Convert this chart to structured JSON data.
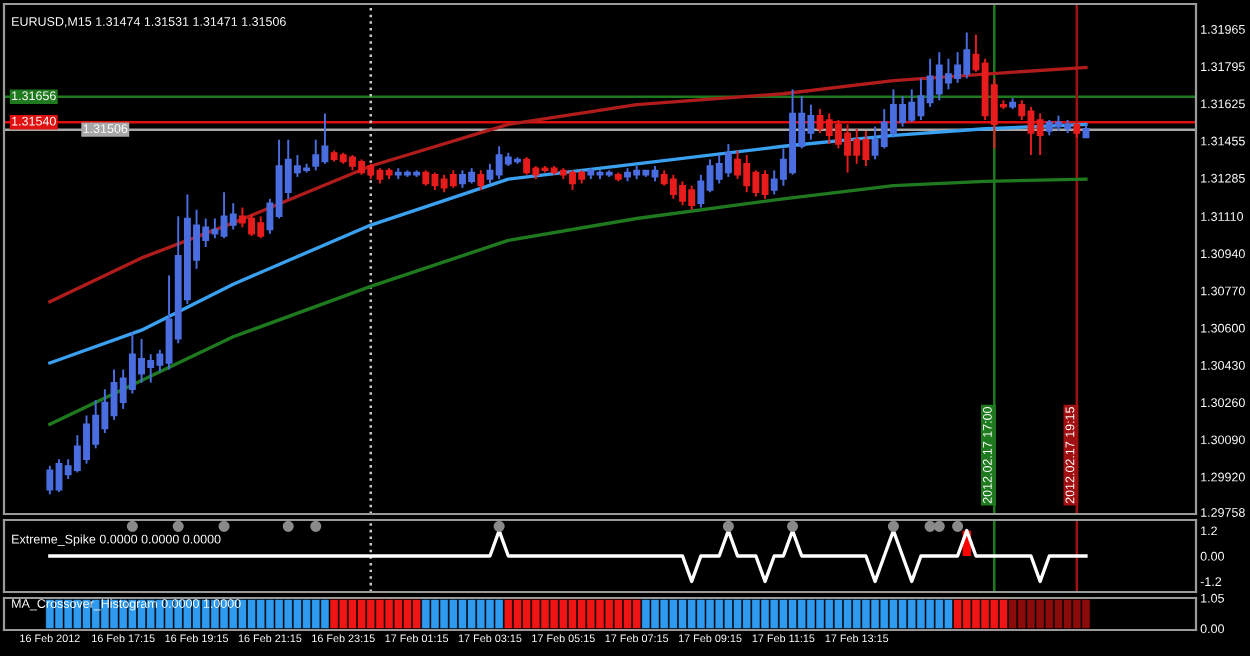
{
  "chart_data": [
    {
      "type": "candlestick",
      "title": "EURUSD,M15 1.31474 1.31531 1.31471 1.31506",
      "x": [
        "2012-02-16T15:15",
        "2012-02-16T15:30",
        "2012-02-16T15:45",
        "2012-02-16T16:00",
        "2012-02-16T16:15",
        "2012-02-16T16:30",
        "2012-02-16T16:45",
        "2012-02-16T17:00",
        "2012-02-16T17:15",
        "2012-02-16T17:30",
        "2012-02-16T17:45",
        "2012-02-16T18:00",
        "2012-02-16T18:15",
        "2012-02-16T18:30",
        "2012-02-16T18:45",
        "2012-02-16T19:00",
        "2012-02-16T19:15",
        "2012-02-16T19:30",
        "2012-02-16T19:45",
        "2012-02-16T20:00",
        "2012-02-16T20:15",
        "2012-02-16T20:30",
        "2012-02-16T20:45",
        "2012-02-16T21:00",
        "2012-02-16T21:15",
        "2012-02-16T21:30",
        "2012-02-16T21:45",
        "2012-02-16T22:00",
        "2012-02-16T22:15",
        "2012-02-16T22:30",
        "2012-02-16T22:45",
        "2012-02-16T23:00",
        "2012-02-16T23:15",
        "2012-02-16T23:30",
        "2012-02-16T23:45",
        "2012-02-17T00:00",
        "2012-02-17T00:15",
        "2012-02-17T00:30",
        "2012-02-17T00:45",
        "2012-02-17T01:00",
        "2012-02-17T01:15",
        "2012-02-17T01:30",
        "2012-02-17T01:45",
        "2012-02-17T02:00",
        "2012-02-17T02:15",
        "2012-02-17T02:30",
        "2012-02-17T02:45",
        "2012-02-17T03:00",
        "2012-02-17T03:15",
        "2012-02-17T03:30",
        "2012-02-17T03:45",
        "2012-02-17T04:00",
        "2012-02-17T04:15",
        "2012-02-17T04:30",
        "2012-02-17T04:45",
        "2012-02-17T05:00",
        "2012-02-17T05:15",
        "2012-02-17T05:30",
        "2012-02-17T05:45",
        "2012-02-17T06:00",
        "2012-02-17T06:15",
        "2012-02-17T06:30",
        "2012-02-17T06:45",
        "2012-02-17T07:00",
        "2012-02-17T07:15",
        "2012-02-17T07:30",
        "2012-02-17T07:45",
        "2012-02-17T08:00",
        "2012-02-17T08:15",
        "2012-02-17T08:30",
        "2012-02-17T08:45",
        "2012-02-17T09:00",
        "2012-02-17T09:15",
        "2012-02-17T09:30",
        "2012-02-17T09:45",
        "2012-02-17T10:00",
        "2012-02-17T10:15",
        "2012-02-17T10:30",
        "2012-02-17T10:45",
        "2012-02-17T11:00",
        "2012-02-17T11:15",
        "2012-02-17T11:30",
        "2012-02-17T11:45",
        "2012-02-17T12:00",
        "2012-02-17T12:15",
        "2012-02-17T12:30",
        "2012-02-17T12:45",
        "2012-02-17T13:00",
        "2012-02-17T13:15",
        "2012-02-17T13:30",
        "2012-02-17T13:45",
        "2012-02-17T14:00",
        "2012-02-17T14:15",
        "2012-02-17T14:30",
        "2012-02-17T14:45",
        "2012-02-17T15:00",
        "2012-02-17T15:15",
        "2012-02-17T15:30",
        "2012-02-17T15:45",
        "2012-02-17T16:00",
        "2012-02-17T16:15",
        "2012-02-17T16:30",
        "2012-02-17T16:45",
        "2012-02-17T17:00",
        "2012-02-17T17:15",
        "2012-02-17T17:30",
        "2012-02-17T17:45",
        "2012-02-17T18:00",
        "2012-02-17T18:15",
        "2012-02-17T18:30",
        "2012-02-17T18:45",
        "2012-02-17T19:00",
        "2012-02-17T19:15",
        "2012-02-17T19:30"
      ],
      "ohlc": [
        [
          1.2986,
          1.2997,
          1.2984,
          1.2995
        ],
        [
          1.2986,
          1.3,
          1.2985,
          1.2998
        ],
        [
          1.2993,
          1.3,
          1.2991,
          1.2997
        ],
        [
          1.2995,
          1.3011,
          1.2994,
          1.3006
        ],
        [
          1.3,
          1.302,
          1.2998,
          1.3016
        ],
        [
          1.3007,
          1.3027,
          1.3005,
          1.302
        ],
        [
          1.3014,
          1.3032,
          1.3012,
          1.3026
        ],
        [
          1.302,
          1.3041,
          1.3018,
          1.3035
        ],
        [
          1.3026,
          1.3041,
          1.3023,
          1.3037
        ],
        [
          1.3032,
          1.3058,
          1.303,
          1.3048
        ],
        [
          1.3039,
          1.3055,
          1.3035,
          1.3046
        ],
        [
          1.3042,
          1.3048,
          1.3035,
          1.3045
        ],
        [
          1.3043,
          1.305,
          1.304,
          1.3048
        ],
        [
          1.3044,
          1.3084,
          1.3041,
          1.3064
        ],
        [
          1.3055,
          1.3111,
          1.3053,
          1.3093
        ],
        [
          1.3073,
          1.3121,
          1.3071,
          1.311
        ],
        [
          1.3091,
          1.3114,
          1.3087,
          1.3107
        ],
        [
          1.31,
          1.311,
          1.3097,
          1.3106
        ],
        [
          1.3103,
          1.311,
          1.3101,
          1.3105
        ],
        [
          1.3102,
          1.3122,
          1.3101,
          1.3111
        ],
        [
          1.3107,
          1.3117,
          1.3105,
          1.3112
        ],
        [
          1.3111,
          1.3115,
          1.3106,
          1.3108
        ],
        [
          1.311,
          1.3112,
          1.3102,
          1.3103
        ],
        [
          1.3108,
          1.3111,
          1.3101,
          1.3102
        ],
        [
          1.3105,
          1.3119,
          1.3103,
          1.3117
        ],
        [
          1.3111,
          1.3146,
          1.311,
          1.3134
        ],
        [
          1.3122,
          1.3146,
          1.3119,
          1.3137
        ],
        [
          1.3131,
          1.3139,
          1.3129,
          1.3134
        ],
        [
          1.3132,
          1.3135,
          1.3131,
          1.3133
        ],
        [
          1.3134,
          1.3146,
          1.3132,
          1.3139
        ],
        [
          1.3136,
          1.3158,
          1.3135,
          1.3143
        ],
        [
          1.314,
          1.3141,
          1.3136,
          1.3137
        ],
        [
          1.3139,
          1.314,
          1.3135,
          1.3136
        ],
        [
          1.3138,
          1.3139,
          1.3132,
          1.3134
        ],
        [
          1.3136,
          1.3137,
          1.313,
          1.3131
        ],
        [
          1.3134,
          1.3135,
          1.3128,
          1.313
        ],
        [
          1.3132,
          1.3133,
          1.3126,
          1.3128
        ],
        [
          1.3132,
          1.3133,
          1.3128,
          1.313
        ],
        [
          1.313,
          1.3133,
          1.3128,
          1.3131
        ],
        [
          1.313,
          1.3132,
          1.3129,
          1.3131
        ],
        [
          1.313,
          1.3132,
          1.3129,
          1.3131
        ],
        [
          1.3131,
          1.3132,
          1.3125,
          1.3126
        ],
        [
          1.313,
          1.3131,
          1.3123,
          1.3125
        ],
        [
          1.3128,
          1.313,
          1.3122,
          1.3124
        ],
        [
          1.313,
          1.3132,
          1.3124,
          1.3125
        ],
        [
          1.3126,
          1.3132,
          1.3124,
          1.313
        ],
        [
          1.3127,
          1.3133,
          1.3126,
          1.3131
        ],
        [
          1.313,
          1.3132,
          1.3123,
          1.3125
        ],
        [
          1.3128,
          1.3135,
          1.3126,
          1.3132
        ],
        [
          1.313,
          1.3143,
          1.3128,
          1.3139
        ],
        [
          1.3135,
          1.314,
          1.3134,
          1.3138
        ],
        [
          1.3136,
          1.3138,
          1.3135,
          1.3137
        ],
        [
          1.3137,
          1.3138,
          1.313,
          1.3131
        ],
        [
          1.3133,
          1.3134,
          1.3128,
          1.313
        ],
        [
          1.3133,
          1.3134,
          1.3131,
          1.3132
        ],
        [
          1.3133,
          1.3134,
          1.313,
          1.3131
        ],
        [
          1.3132,
          1.3133,
          1.3128,
          1.313
        ],
        [
          1.3131,
          1.3132,
          1.3123,
          1.3126
        ],
        [
          1.3131,
          1.3132,
          1.3126,
          1.3128
        ],
        [
          1.313,
          1.3133,
          1.3128,
          1.3132
        ],
        [
          1.313,
          1.3132,
          1.3128,
          1.3131
        ],
        [
          1.313,
          1.3132,
          1.3129,
          1.3131
        ],
        [
          1.313,
          1.3131,
          1.3127,
          1.3128
        ],
        [
          1.3129,
          1.3133,
          1.3127,
          1.3131
        ],
        [
          1.313,
          1.3134,
          1.3128,
          1.3132
        ],
        [
          1.313,
          1.3132,
          1.3129,
          1.3132
        ],
        [
          1.3129,
          1.3134,
          1.3127,
          1.3132
        ],
        [
          1.313,
          1.3132,
          1.3125,
          1.3126
        ],
        [
          1.3128,
          1.313,
          1.3119,
          1.3121
        ],
        [
          1.3125,
          1.3127,
          1.3116,
          1.3118
        ],
        [
          1.3123,
          1.3125,
          1.3114,
          1.3116
        ],
        [
          1.3117,
          1.313,
          1.3115,
          1.3127
        ],
        [
          1.3123,
          1.3137,
          1.3122,
          1.3134
        ],
        [
          1.3128,
          1.3139,
          1.3126,
          1.3135
        ],
        [
          1.3131,
          1.3144,
          1.3129,
          1.314
        ],
        [
          1.3137,
          1.3141,
          1.3128,
          1.313
        ],
        [
          1.3135,
          1.3139,
          1.3122,
          1.3125
        ],
        [
          1.3131,
          1.3132,
          1.312,
          1.3122
        ],
        [
          1.313,
          1.3132,
          1.3119,
          1.3121
        ],
        [
          1.3123,
          1.3132,
          1.3121,
          1.3128
        ],
        [
          1.3128,
          1.3142,
          1.3125,
          1.3137
        ],
        [
          1.3131,
          1.3169,
          1.313,
          1.3158
        ],
        [
          1.3143,
          1.3166,
          1.3142,
          1.3158
        ],
        [
          1.3149,
          1.3162,
          1.3146,
          1.3157
        ],
        [
          1.3157,
          1.316,
          1.3149,
          1.3151
        ],
        [
          1.3155,
          1.3158,
          1.3144,
          1.3148
        ],
        [
          1.3153,
          1.3155,
          1.3142,
          1.3144
        ],
        [
          1.3149,
          1.3153,
          1.3131,
          1.3139
        ],
        [
          1.3146,
          1.3151,
          1.3135,
          1.3139
        ],
        [
          1.3146,
          1.315,
          1.3134,
          1.3137
        ],
        [
          1.3139,
          1.3152,
          1.3137,
          1.3146
        ],
        [
          1.3143,
          1.316,
          1.3142,
          1.3154
        ],
        [
          1.3149,
          1.3169,
          1.3147,
          1.3162
        ],
        [
          1.3154,
          1.3166,
          1.3152,
          1.3162
        ],
        [
          1.3155,
          1.3169,
          1.3154,
          1.3163
        ],
        [
          1.3157,
          1.3174,
          1.3155,
          1.3166
        ],
        [
          1.3163,
          1.3183,
          1.3161,
          1.3175
        ],
        [
          1.3167,
          1.3186,
          1.3164,
          1.318
        ],
        [
          1.3172,
          1.3183,
          1.3169,
          1.3176
        ],
        [
          1.3174,
          1.3186,
          1.3172,
          1.318
        ],
        [
          1.3176,
          1.3195,
          1.3174,
          1.3187
        ],
        [
          1.3185,
          1.3194,
          1.3177,
          1.3178
        ],
        [
          1.3181,
          1.3183,
          1.3155,
          1.3157
        ],
        [
          1.3171,
          1.3174,
          1.3142,
          1.3153
        ],
        [
          1.3162,
          1.3164,
          1.316,
          1.3161
        ],
        [
          1.3161,
          1.3165,
          1.316,
          1.3163
        ],
        [
          1.3162,
          1.3164,
          1.3155,
          1.3157
        ],
        [
          1.3159,
          1.3161,
          1.3139,
          1.3149
        ],
        [
          1.3155,
          1.3158,
          1.3139,
          1.3148
        ],
        [
          1.315,
          1.3155,
          1.3148,
          1.3154
        ],
        [
          1.3152,
          1.3157,
          1.315,
          1.3154
        ],
        [
          1.3151,
          1.3155,
          1.3149,
          1.3153
        ],
        [
          1.3153,
          1.3154,
          1.3147,
          1.3149
        ],
        [
          1.3147,
          1.3153,
          1.3147,
          1.3151
        ]
      ],
      "colors": [
        "#4a6ee0",
        "#4a6ee0",
        "#4a6ee0",
        "#4a6ee0",
        "#4a6ee0",
        "#4a6ee0",
        "#4a6ee0",
        "#4a6ee0",
        "#4a6ee0",
        "#4a6ee0",
        "#4a6ee0",
        "#4a6ee0",
        "#4a6ee0",
        "#4a6ee0",
        "#4a6ee0",
        "#4a6ee0",
        "#4a6ee0",
        "#4a6ee0",
        "#4a6ee0",
        "#4a6ee0",
        "#4a6ee0",
        "#e81c1c",
        "#e81c1c",
        "#e81c1c",
        "#4a6ee0",
        "#4a6ee0",
        "#4a6ee0",
        "#4a6ee0",
        "#4a6ee0",
        "#4a6ee0",
        "#4a6ee0",
        "#e81c1c",
        "#e81c1c",
        "#e81c1c",
        "#e81c1c",
        "#e81c1c",
        "#e81c1c",
        "#e81c1c",
        "#4a6ee0",
        "#4a6ee0",
        "#4a6ee0",
        "#e81c1c",
        "#e81c1c",
        "#e81c1c",
        "#e81c1c",
        "#4a6ee0",
        "#4a6ee0",
        "#e81c1c",
        "#4a6ee0",
        "#4a6ee0",
        "#4a6ee0",
        "#4a6ee0",
        "#e81c1c",
        "#e81c1c",
        "#e81c1c",
        "#e81c1c",
        "#e81c1c",
        "#e81c1c",
        "#e81c1c",
        "#4a6ee0",
        "#4a6ee0",
        "#4a6ee0",
        "#e81c1c",
        "#4a6ee0",
        "#4a6ee0",
        "#4a6ee0",
        "#4a6ee0",
        "#e81c1c",
        "#e81c1c",
        "#e81c1c",
        "#e81c1c",
        "#4a6ee0",
        "#4a6ee0",
        "#4a6ee0",
        "#4a6ee0",
        "#e81c1c",
        "#e81c1c",
        "#e81c1c",
        "#e81c1c",
        "#4a6ee0",
        "#4a6ee0",
        "#4a6ee0",
        "#4a6ee0",
        "#4a6ee0",
        "#e81c1c",
        "#e81c1c",
        "#e81c1c",
        "#e81c1c",
        "#e81c1c",
        "#e81c1c",
        "#4a6ee0",
        "#4a6ee0",
        "#4a6ee0",
        "#4a6ee0",
        "#4a6ee0",
        "#4a6ee0",
        "#4a6ee0",
        "#4a6ee0",
        "#4a6ee0",
        "#4a6ee0",
        "#4a6ee0",
        "#e81c1c",
        "#e81c1c",
        "#e81c1c",
        "#e81c1c",
        "#4a6ee0",
        "#e81c1c",
        "#e81c1c",
        "#e81c1c",
        "#4a6ee0",
        "#4a6ee0",
        "#4a6ee0",
        "#e81c1c",
        "#4a6ee0"
      ],
      "series": [
        {
          "type": "line",
          "color": "#b01c1c",
          "x": [
            "2012-02-16T15:15",
            "2012-02-16T17:45",
            "2012-02-16T20:15",
            "2012-02-17T00:00",
            "2012-02-17T03:45",
            "2012-02-17T07:15",
            "2012-02-17T11:15",
            "2012-02-17T14:15",
            "2012-02-17T16:45",
            "2012-02-17T19:30"
          ],
          "values": [
            1.3072,
            1.3092,
            1.3108,
            1.3134,
            1.3153,
            1.3162,
            1.3167,
            1.3173,
            1.3176,
            1.3179
          ]
        },
        {
          "type": "line",
          "color": "#3aa0f0",
          "x": [
            "2012-02-16T15:15",
            "2012-02-16T17:45",
            "2012-02-16T20:15",
            "2012-02-17T00:00",
            "2012-02-17T03:45",
            "2012-02-17T07:15",
            "2012-02-17T11:15",
            "2012-02-17T14:15",
            "2012-02-17T16:45",
            "2012-02-17T19:30"
          ],
          "values": [
            1.3044,
            1.3059,
            1.308,
            1.3107,
            1.3128,
            1.3135,
            1.3143,
            1.3148,
            1.3151,
            1.3153
          ]
        },
        {
          "type": "line",
          "color": "#1f7a1f",
          "x": [
            "2012-02-16T15:15",
            "2012-02-16T17:45",
            "2012-02-16T20:15",
            "2012-02-17T00:00",
            "2012-02-17T03:45",
            "2012-02-17T07:15",
            "2012-02-17T11:15",
            "2012-02-17T14:15",
            "2012-02-17T16:45",
            "2012-02-17T19:30"
          ],
          "values": [
            1.3016,
            1.3036,
            1.3056,
            1.3079,
            1.31,
            1.311,
            1.3119,
            1.3125,
            1.3127,
            1.3128
          ]
        }
      ],
      "ref_lines": [
        {
          "axis": "y",
          "value": 1.31656,
          "label": "1.31656",
          "color": "#1f7a1f"
        },
        {
          "axis": "y",
          "value": 1.3154,
          "label": "1.31540",
          "color": "#e01010"
        },
        {
          "axis": "y",
          "value": 1.31506,
          "label": "1.31506",
          "color": "#a8a8a8"
        },
        {
          "axis": "x",
          "value": "2012-02-17T00:00",
          "color": "#c8c8c8",
          "line_style": "dotted"
        },
        {
          "axis": "x",
          "value": "2012-02-17T17:00",
          "label": "2012.02.17 17:00",
          "color": "#1f7a1f"
        },
        {
          "axis": "x",
          "value": "2012-02-17T19:15",
          "label": "2012.02.17 19:15",
          "color": "#a01010"
        }
      ],
      "ylim": [
        1.2975,
        1.3208
      ],
      "yticks": [
        1.31965,
        1.31795,
        1.31625,
        1.31455,
        1.31285,
        {
          "value": 1.3111,
          "label": "1.31110"
        },
        {
          "value": 1.3094,
          "label": "1.30940"
        },
        {
          "value": 1.3077,
          "label": "1.30770"
        },
        {
          "value": 1.306,
          "label": "1.30600"
        },
        {
          "value": 1.3043,
          "label": "1.30430"
        },
        {
          "value": 1.3026,
          "label": "1.30260"
        },
        {
          "value": 1.3009,
          "label": "1.30090"
        },
        {
          "value": 1.2992,
          "label": "1.29920"
        },
        1.29758
      ],
      "tick_labels": "y",
      "xlim": [
        "2012-02-16T14:00",
        "2012-02-17T22:30"
      ]
    },
    {
      "type": "line",
      "title": "Extreme_Spike 0.0000 0.0000 0.0000",
      "x": [
        "2012-02-16T15:15",
        "2012-02-16T15:30",
        "2012-02-16T15:45",
        "2012-02-16T16:00",
        "2012-02-16T16:15",
        "2012-02-16T16:30",
        "2012-02-16T16:45",
        "2012-02-16T17:00",
        "2012-02-16T17:15",
        "2012-02-16T17:30",
        "2012-02-16T17:45",
        "2012-02-16T18:00",
        "2012-02-16T18:15",
        "2012-02-16T18:30",
        "2012-02-16T18:45",
        "2012-02-16T19:00",
        "2012-02-16T19:15",
        "2012-02-16T19:30",
        "2012-02-16T19:45",
        "2012-02-16T20:00",
        "2012-02-16T20:15",
        "2012-02-16T20:30",
        "2012-02-16T20:45",
        "2012-02-16T21:00",
        "2012-02-16T21:15",
        "2012-02-16T21:30",
        "2012-02-16T21:45",
        "2012-02-16T22:00",
        "2012-02-16T22:15",
        "2012-02-16T22:30",
        "2012-02-16T22:45",
        "2012-02-16T23:00",
        "2012-02-16T23:15",
        "2012-02-16T23:30",
        "2012-02-16T23:45",
        "2012-02-17T00:00",
        "2012-02-17T00:15",
        "2012-02-17T00:30",
        "2012-02-17T00:45",
        "2012-02-17T01:00",
        "2012-02-17T01:15",
        "2012-02-17T01:30",
        "2012-02-17T01:45",
        "2012-02-17T02:00",
        "2012-02-17T02:15",
        "2012-02-17T02:30",
        "2012-02-17T02:45",
        "2012-02-17T03:00",
        "2012-02-17T03:15",
        "2012-02-17T03:30",
        "2012-02-17T03:45",
        "2012-02-17T04:00",
        "2012-02-17T04:15",
        "2012-02-17T04:30",
        "2012-02-17T04:45",
        "2012-02-17T05:00",
        "2012-02-17T05:15",
        "2012-02-17T05:30",
        "2012-02-17T05:45",
        "2012-02-17T06:00",
        "2012-02-17T06:15",
        "2012-02-17T06:30",
        "2012-02-17T06:45",
        "2012-02-17T07:00",
        "2012-02-17T07:15",
        "2012-02-17T07:30",
        "2012-02-17T07:45",
        "2012-02-17T08:00",
        "2012-02-17T08:15",
        "2012-02-17T08:30",
        "2012-02-17T08:45",
        "2012-02-17T09:00",
        "2012-02-17T09:15",
        "2012-02-17T09:30",
        "2012-02-17T09:45",
        "2012-02-17T10:00",
        "2012-02-17T10:15",
        "2012-02-17T10:30",
        "2012-02-17T10:45",
        "2012-02-17T11:00",
        "2012-02-17T11:15",
        "2012-02-17T11:30",
        "2012-02-17T11:45",
        "2012-02-17T12:00",
        "2012-02-17T12:15",
        "2012-02-17T12:30",
        "2012-02-17T12:45",
        "2012-02-17T13:00",
        "2012-02-17T13:15",
        "2012-02-17T13:30",
        "2012-02-17T13:45",
        "2012-02-17T14:00",
        "2012-02-17T14:15",
        "2012-02-17T14:30",
        "2012-02-17T14:45",
        "2012-02-17T15:00",
        "2012-02-17T15:15",
        "2012-02-17T15:30",
        "2012-02-17T15:45",
        "2012-02-17T16:00",
        "2012-02-17T16:15",
        "2012-02-17T16:30",
        "2012-02-17T16:45",
        "2012-02-17T17:00",
        "2012-02-17T17:15",
        "2012-02-17T17:30",
        "2012-02-17T17:45",
        "2012-02-17T18:00",
        "2012-02-17T18:15",
        "2012-02-17T18:30",
        "2012-02-17T18:45",
        "2012-02-17T19:00",
        "2012-02-17T19:15",
        "2012-02-17T19:30"
      ],
      "series": [
        {
          "color": "#ffffff",
          "values": [
            0,
            0,
            0,
            0,
            0,
            0,
            0,
            0,
            0,
            0,
            0,
            0,
            0,
            0,
            0,
            0,
            0,
            0,
            0,
            0,
            0,
            0,
            0,
            0,
            0,
            0,
            0,
            0,
            0,
            0,
            0,
            0,
            0,
            0,
            0,
            0,
            0,
            0,
            0,
            0,
            0,
            0,
            0,
            0,
            0,
            0,
            0,
            0,
            0,
            1.2,
            0,
            0,
            0,
            0,
            0,
            0,
            0,
            0,
            0,
            0,
            0,
            0,
            0,
            0,
            0,
            0,
            0,
            0,
            0,
            0,
            -1.2,
            0,
            0,
            0,
            1.2,
            0,
            0,
            0,
            -1.2,
            0,
            0,
            1.2,
            0,
            0,
            0,
            0,
            0,
            0,
            0,
            0,
            -1.2,
            0,
            1.2,
            0,
            -1.2,
            0,
            0,
            0,
            0,
            0,
            1.2,
            0,
            0,
            0,
            0,
            0,
            0,
            0,
            -1.2,
            0,
            0,
            0,
            0,
            0
          ]
        },
        {
          "type": "bar",
          "color": "#ff0000",
          "x": [
            "2012-02-17T16:15"
          ],
          "values": [
            1.2
          ]
        },
        {
          "type": "scatter",
          "color": "#8a8a8a",
          "marker": "circle",
          "x": [
            "2012-02-16T17:30",
            "2012-02-16T18:45",
            "2012-02-16T20:00",
            "2012-02-16T21:45",
            "2012-02-16T22:30",
            "2012-02-17T03:30",
            "2012-02-17T09:45",
            "2012-02-17T11:30",
            "2012-02-17T14:15",
            "2012-02-17T15:15",
            "2012-02-17T15:30",
            "2012-02-17T16:00"
          ],
          "values": [
            1.4,
            1.4,
            1.4,
            1.4,
            1.4,
            1.4,
            1.4,
            1.4,
            1.4,
            1.4,
            1.4,
            1.4
          ]
        }
      ],
      "ref_lines": [
        {
          "axis": "x",
          "value": "2012-02-17T00:00",
          "color": "#c8c8c8",
          "line_style": "dotted"
        },
        {
          "axis": "x",
          "value": "2012-02-17T17:00",
          "color": "#1f7a1f"
        },
        {
          "axis": "x",
          "value": "2012-02-17T19:15",
          "color": "#a01010"
        }
      ],
      "xlim": [
        "2012-02-16T14:00",
        "2012-02-17T22:30"
      ],
      "ylim": [
        -1.7,
        1.7
      ],
      "yticks": [
        1.2,
        {
          "value": 0,
          "label": "0.00"
        },
        -1.2
      ],
      "tick_labels": "y"
    },
    {
      "type": "bar",
      "title": "MA_Crossover_Histogram 0.0000 1.0000",
      "x": [
        "2012-02-16T15:15",
        "2012-02-16T15:30",
        "2012-02-16T15:45",
        "2012-02-16T16:00",
        "2012-02-16T16:15",
        "2012-02-16T16:30",
        "2012-02-16T16:45",
        "2012-02-16T17:00",
        "2012-02-16T17:15",
        "2012-02-16T17:30",
        "2012-02-16T17:45",
        "2012-02-16T18:00",
        "2012-02-16T18:15",
        "2012-02-16T18:30",
        "2012-02-16T18:45",
        "2012-02-16T19:00",
        "2012-02-16T19:15",
        "2012-02-16T19:30",
        "2012-02-16T19:45",
        "2012-02-16T20:00",
        "2012-02-16T20:15",
        "2012-02-16T20:30",
        "2012-02-16T20:45",
        "2012-02-16T21:00",
        "2012-02-16T21:15",
        "2012-02-16T21:30",
        "2012-02-16T21:45",
        "2012-02-16T22:00",
        "2012-02-16T22:15",
        "2012-02-16T22:30",
        "2012-02-16T22:45",
        "2012-02-16T23:00",
        "2012-02-16T23:15",
        "2012-02-16T23:30",
        "2012-02-16T23:45",
        "2012-02-17T00:00",
        "2012-02-17T00:15",
        "2012-02-17T00:30",
        "2012-02-17T00:45",
        "2012-02-17T01:00",
        "2012-02-17T01:15",
        "2012-02-17T01:30",
        "2012-02-17T01:45",
        "2012-02-17T02:00",
        "2012-02-17T02:15",
        "2012-02-17T02:30",
        "2012-02-17T02:45",
        "2012-02-17T03:00",
        "2012-02-17T03:15",
        "2012-02-17T03:30",
        "2012-02-17T03:45",
        "2012-02-17T04:00",
        "2012-02-17T04:15",
        "2012-02-17T04:30",
        "2012-02-17T04:45",
        "2012-02-17T05:00",
        "2012-02-17T05:15",
        "2012-02-17T05:30",
        "2012-02-17T05:45",
        "2012-02-17T06:00",
        "2012-02-17T06:15",
        "2012-02-17T06:30",
        "2012-02-17T06:45",
        "2012-02-17T07:00",
        "2012-02-17T07:15",
        "2012-02-17T07:30",
        "2012-02-17T07:45",
        "2012-02-17T08:00",
        "2012-02-17T08:15",
        "2012-02-17T08:30",
        "2012-02-17T08:45",
        "2012-02-17T09:00",
        "2012-02-17T09:15",
        "2012-02-17T09:30",
        "2012-02-17T09:45",
        "2012-02-17T10:00",
        "2012-02-17T10:15",
        "2012-02-17T10:30",
        "2012-02-17T10:45",
        "2012-02-17T11:00",
        "2012-02-17T11:15",
        "2012-02-17T11:30",
        "2012-02-17T11:45",
        "2012-02-17T12:00",
        "2012-02-17T12:15",
        "2012-02-17T12:30",
        "2012-02-17T12:45",
        "2012-02-17T13:00",
        "2012-02-17T13:15",
        "2012-02-17T13:30",
        "2012-02-17T13:45",
        "2012-02-17T14:00",
        "2012-02-17T14:15",
        "2012-02-17T14:30",
        "2012-02-17T14:45",
        "2012-02-17T15:00",
        "2012-02-17T15:15",
        "2012-02-17T15:30",
        "2012-02-17T15:45",
        "2012-02-17T16:00",
        "2012-02-17T16:15",
        "2012-02-17T16:30",
        "2012-02-17T16:45",
        "2012-02-17T17:00",
        "2012-02-17T17:15",
        "2012-02-17T17:30",
        "2012-02-17T17:45",
        "2012-02-17T18:00",
        "2012-02-17T18:15",
        "2012-02-17T18:30",
        "2012-02-17T18:45",
        "2012-02-17T19:00",
        "2012-02-17T19:15",
        "2012-02-17T19:30"
      ],
      "values": [
        1,
        1,
        1,
        1,
        1,
        1,
        1,
        1,
        1,
        1,
        1,
        1,
        1,
        1,
        1,
        1,
        1,
        1,
        1,
        1,
        1,
        1,
        1,
        1,
        1,
        1,
        1,
        1,
        1,
        1,
        1,
        1,
        1,
        1,
        1,
        1,
        1,
        1,
        1,
        1,
        1,
        1,
        1,
        1,
        1,
        1,
        1,
        1,
        1,
        1,
        1,
        1,
        1,
        1,
        1,
        1,
        1,
        1,
        1,
        1,
        1,
        1,
        1,
        1,
        1,
        1,
        1,
        1,
        1,
        1,
        1,
        1,
        1,
        1,
        1,
        1,
        1,
        1,
        1,
        1,
        1,
        1,
        1,
        1,
        1,
        1,
        1,
        1,
        1,
        1,
        1,
        1,
        1,
        1,
        1,
        1,
        1,
        1,
        1,
        1,
        1,
        1,
        1,
        1,
        1,
        1,
        1,
        1,
        1,
        1,
        1,
        1,
        1,
        1
      ],
      "colors": [
        "#2f9bf0",
        "#2f9bf0",
        "#2f9bf0",
        "#2f9bf0",
        "#2f9bf0",
        "#2f9bf0",
        "#2f9bf0",
        "#2f9bf0",
        "#2f9bf0",
        "#2f9bf0",
        "#2f9bf0",
        "#2f9bf0",
        "#2f9bf0",
        "#2f9bf0",
        "#2f9bf0",
        "#2f9bf0",
        "#2f9bf0",
        "#2f9bf0",
        "#2f9bf0",
        "#2f9bf0",
        "#2f9bf0",
        "#2f9bf0",
        "#2f9bf0",
        "#2f9bf0",
        "#2f9bf0",
        "#2f9bf0",
        "#2f9bf0",
        "#2f9bf0",
        "#2f9bf0",
        "#2f9bf0",
        "#2f9bf0",
        "#f01414",
        "#f01414",
        "#f01414",
        "#f01414",
        "#f01414",
        "#f01414",
        "#f01414",
        "#f01414",
        "#f01414",
        "#f01414",
        "#2f9bf0",
        "#2f9bf0",
        "#2f9bf0",
        "#2f9bf0",
        "#2f9bf0",
        "#2f9bf0",
        "#2f9bf0",
        "#2f9bf0",
        "#2f9bf0",
        "#f01414",
        "#f01414",
        "#f01414",
        "#f01414",
        "#f01414",
        "#f01414",
        "#f01414",
        "#f01414",
        "#f01414",
        "#f01414",
        "#f01414",
        "#f01414",
        "#f01414",
        "#f01414",
        "#f01414",
        "#2f9bf0",
        "#2f9bf0",
        "#2f9bf0",
        "#2f9bf0",
        "#2f9bf0",
        "#2f9bf0",
        "#2f9bf0",
        "#2f9bf0",
        "#2f9bf0",
        "#2f9bf0",
        "#2f9bf0",
        "#2f9bf0",
        "#2f9bf0",
        "#2f9bf0",
        "#2f9bf0",
        "#2f9bf0",
        "#2f9bf0",
        "#2f9bf0",
        "#2f9bf0",
        "#2f9bf0",
        "#2f9bf0",
        "#2f9bf0",
        "#2f9bf0",
        "#2f9bf0",
        "#2f9bf0",
        "#2f9bf0",
        "#2f9bf0",
        "#2f9bf0",
        "#2f9bf0",
        "#2f9bf0",
        "#2f9bf0",
        "#2f9bf0",
        "#2f9bf0",
        "#2f9bf0",
        "#f01414",
        "#f01414",
        "#f01414",
        "#f01414",
        "#f01414",
        "#f01414",
        "#8b0a0a",
        "#8b0a0a",
        "#8b0a0a",
        "#8b0a0a",
        "#8b0a0a",
        "#8b0a0a",
        "#8b0a0a",
        "#8b0a0a",
        "#8b0a0a"
      ],
      "xlim": [
        "2012-02-16T14:00",
        "2012-02-17T22:30"
      ],
      "ylim": [
        -0.05,
        1.05
      ],
      "yticks": [
        1.05,
        {
          "value": 0,
          "label": "0.00"
        }
      ],
      "xticks": [
        {
          "value": "2012-02-16T15:15",
          "label": "16 Feb 2012"
        },
        {
          "value": "2012-02-16T17:15",
          "label": "16 Feb 17:15"
        },
        {
          "value": "2012-02-16T19:15",
          "label": "16 Feb 19:15"
        },
        {
          "value": "2012-02-16T21:15",
          "label": "16 Feb 21:15"
        },
        {
          "value": "2012-02-16T23:15",
          "label": "16 Feb 23:15"
        },
        {
          "value": "2012-02-17T01:15",
          "label": "17 Feb 01:15"
        },
        {
          "value": "2012-02-17T03:15",
          "label": "17 Feb 03:15"
        },
        {
          "value": "2012-02-17T05:15",
          "label": "17 Feb 05:15"
        },
        {
          "value": "2012-02-17T07:15",
          "label": "17 Feb 07:15"
        },
        {
          "value": "2012-02-17T09:15",
          "label": "17 Feb 09:15"
        },
        {
          "value": "2012-02-17T11:15",
          "label": "17 Feb 11:15"
        },
        {
          "value": "2012-02-17T13:15",
          "label": "17 Feb 13:15"
        }
      ]
    }
  ]
}
